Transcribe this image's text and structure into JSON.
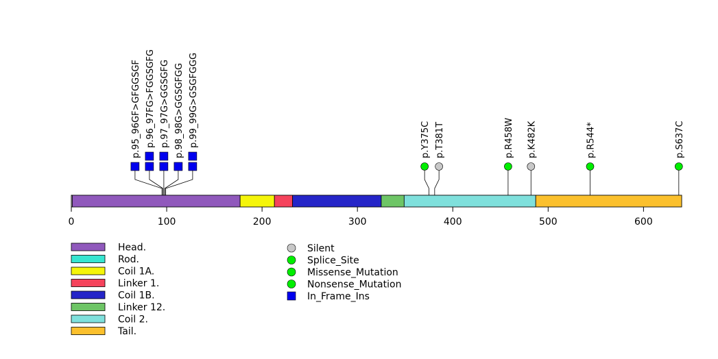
{
  "chart_data": {
    "type": "lollipop",
    "title": "",
    "x_axis": {
      "min": 0,
      "max": 640,
      "ticks": [
        "0",
        "100",
        "200",
        "300",
        "400",
        "500",
        "600"
      ]
    },
    "domains": [
      {
        "name": "Head.",
        "start": 1,
        "end": 177,
        "color": "#9059bc"
      },
      {
        "name": "Coil 1A.",
        "start": 177,
        "end": 213,
        "color": "#f5f50a"
      },
      {
        "name": "Linker 1.",
        "start": 213,
        "end": 232,
        "color": "#f5435c"
      },
      {
        "name": "Coil 1B.",
        "start": 232,
        "end": 325,
        "color": "#2525c8"
      },
      {
        "name": "Linker 12.",
        "start": 325,
        "end": 349,
        "color": "#6ec566"
      },
      {
        "name": "Coil 2.",
        "start": 349,
        "end": 487,
        "color": "#7fe0dc"
      },
      {
        "name": "Tail.",
        "start": 487,
        "end": 640,
        "color": "#fbc02d"
      }
    ],
    "legend_domains": [
      {
        "name": "Head.",
        "color": "#9059bc"
      },
      {
        "name": "Rod.",
        "color": "#36e5d0"
      },
      {
        "name": "Coil 1A.",
        "color": "#f5f50a"
      },
      {
        "name": "Linker 1.",
        "color": "#f5435c"
      },
      {
        "name": "Coil 1B.",
        "color": "#2525c8"
      },
      {
        "name": "Linker 12.",
        "color": "#6ec566"
      },
      {
        "name": "Coil 2.",
        "color": "#7fe0dc"
      },
      {
        "name": "Tail.",
        "color": "#fbc02d"
      }
    ],
    "legend_mutations": [
      {
        "name": "Silent",
        "shape": "circle",
        "color": "#c8c8c8"
      },
      {
        "name": "Splice_Site",
        "shape": "circle",
        "color": "#00ee00"
      },
      {
        "name": "Missense_Mutation",
        "shape": "circle",
        "color": "#00ee00"
      },
      {
        "name": "Nonsense_Mutation",
        "shape": "circle",
        "color": "#00ee00"
      },
      {
        "name": "In_Frame_Ins",
        "shape": "square",
        "color": "#0000ee"
      }
    ],
    "mutations": [
      {
        "label": "p.95_96GF>GFGGSGF",
        "pos": 95,
        "type": "In_Frame_Ins",
        "count": 1
      },
      {
        "label": "p.96_97FG>FGGSGFG",
        "pos": 96,
        "type": "In_Frame_Ins",
        "count": 2
      },
      {
        "label": "p.97_97G>GGSGFG",
        "pos": 97,
        "type": "In_Frame_Ins",
        "count": 2
      },
      {
        "label": "p.98_98G>GGSGFGG",
        "pos": 98,
        "type": "In_Frame_Ins",
        "count": 1
      },
      {
        "label": "p.99_99G>GSGFGGG",
        "pos": 99,
        "type": "In_Frame_Ins",
        "count": 2
      },
      {
        "label": "p.Y375C",
        "pos": 375,
        "type": "Missense_Mutation",
        "count": 1
      },
      {
        "label": "p.T381T",
        "pos": 381,
        "type": "Silent",
        "count": 1
      },
      {
        "label": "p.R458W",
        "pos": 458,
        "type": "Missense_Mutation",
        "count": 1
      },
      {
        "label": "p.K482K",
        "pos": 482,
        "type": "Silent",
        "count": 1
      },
      {
        "label": "p.R544*",
        "pos": 544,
        "type": "Nonsense_Mutation",
        "count": 1
      },
      {
        "label": "p.S637C",
        "pos": 637,
        "type": "Missense_Mutation",
        "count": 1
      }
    ]
  }
}
